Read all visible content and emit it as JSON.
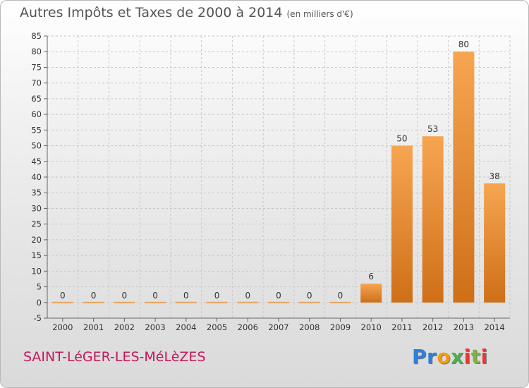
{
  "title": "Autres Impôts et Taxes de 2000 à 2014",
  "subtitle": "(en milliers d'€)",
  "commune": "SAINT-LéGER-LES-MéLèZES",
  "logo": [
    {
      "ch": "P",
      "color": "#2e7fd6"
    },
    {
      "ch": "r",
      "color": "#2e7fd6"
    },
    {
      "ch": "o",
      "color": "#f39c12"
    },
    {
      "ch": "x",
      "color": "#4caf50"
    },
    {
      "ch": "i",
      "color": "#e53935"
    },
    {
      "ch": "t",
      "color": "#7cb342"
    },
    {
      "ch": "i",
      "color": "#e53935"
    }
  ],
  "chart_data": {
    "type": "bar",
    "categories": [
      "2000",
      "2001",
      "2002",
      "2003",
      "2004",
      "2005",
      "2006",
      "2007",
      "2008",
      "2009",
      "2010",
      "2011",
      "2012",
      "2013",
      "2014"
    ],
    "values": [
      0,
      0,
      0,
      0,
      0,
      0,
      0,
      0,
      0,
      0,
      6,
      50,
      53,
      80,
      38
    ],
    "ylim": [
      -5,
      85
    ],
    "yticks": [
      -5,
      0,
      5,
      10,
      15,
      20,
      25,
      30,
      35,
      40,
      45,
      50,
      55,
      60,
      65,
      70,
      75,
      80,
      85
    ],
    "grid": true,
    "bar_color": "#f0953a"
  }
}
